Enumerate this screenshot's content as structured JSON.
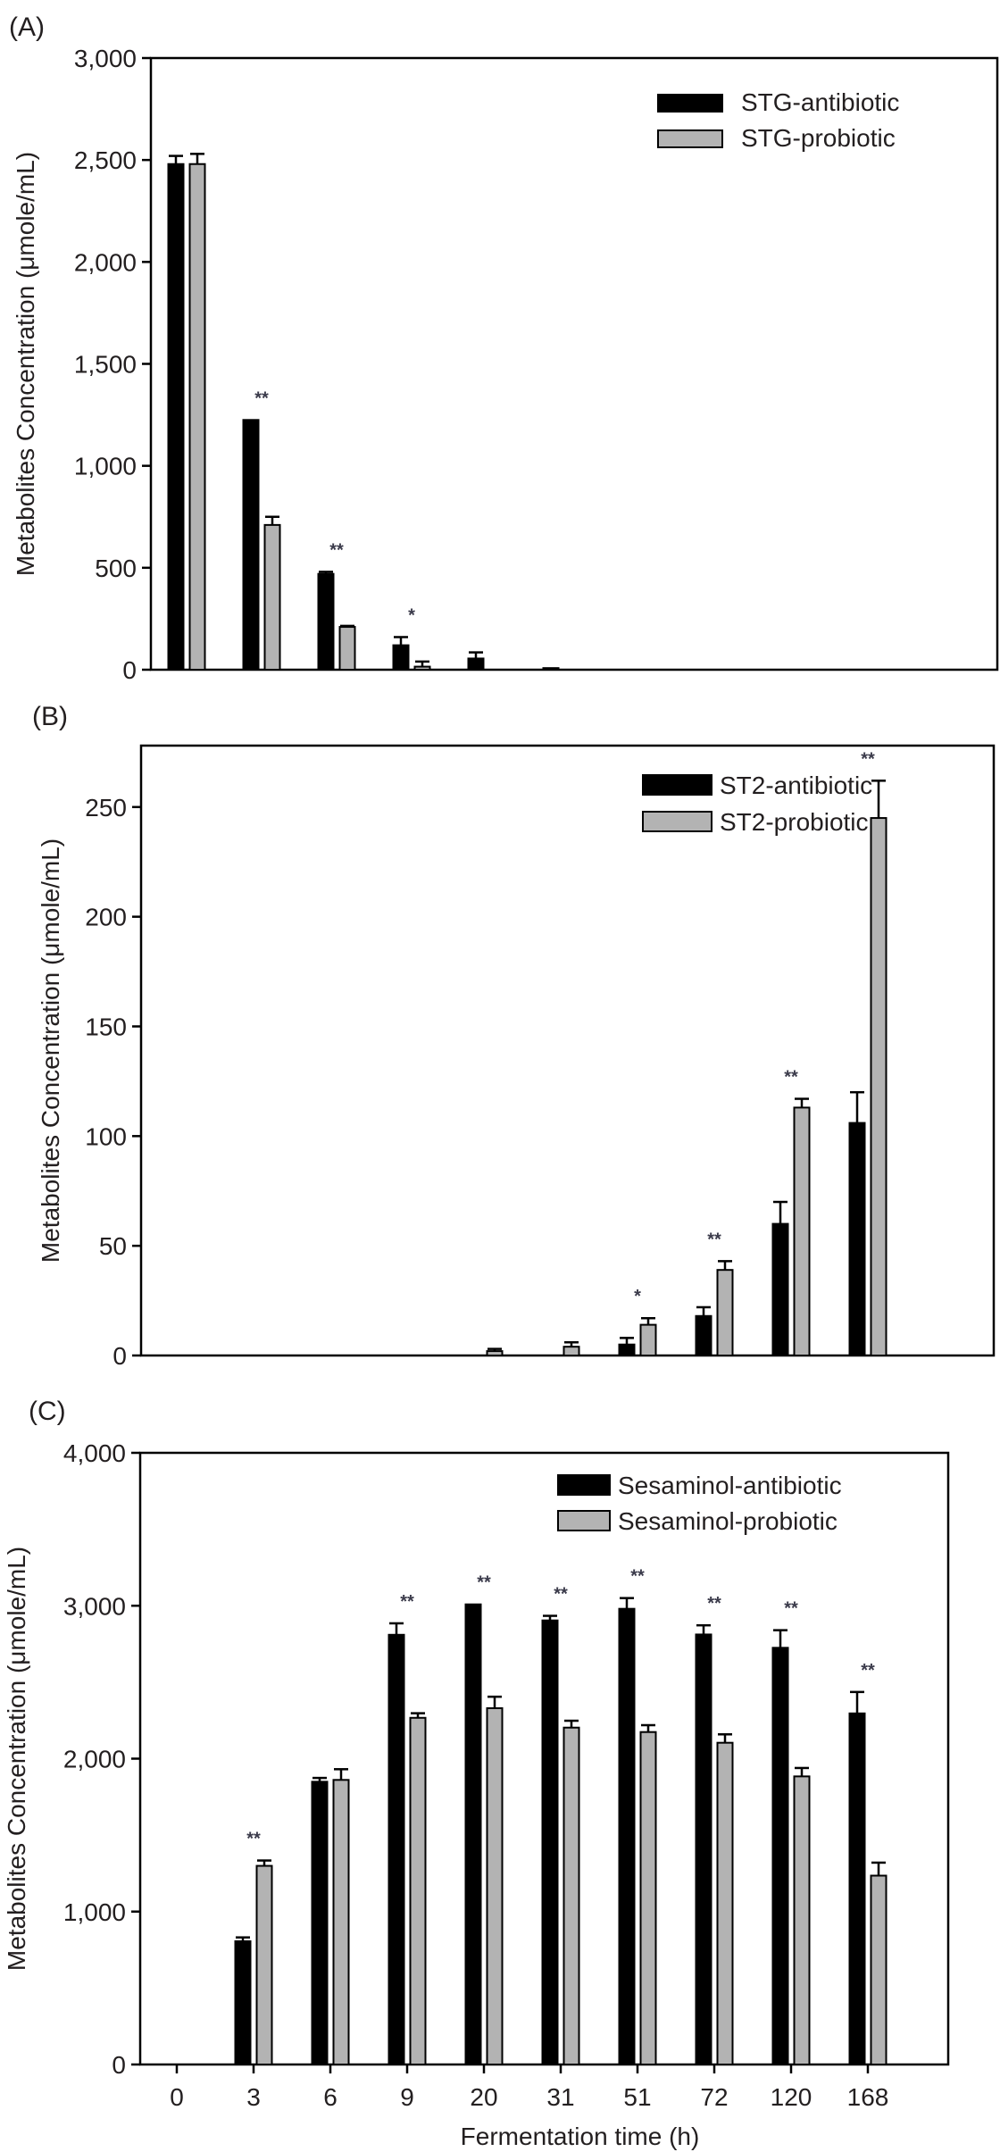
{
  "figure": {
    "x_axis_title": "Fermentation time (h)",
    "colors": {
      "antibiotic": "#000000",
      "probiotic": "#b3b3b3",
      "axis": "#000000"
    }
  },
  "chart_data": [
    {
      "type": "bar",
      "panel_label": "(A)",
      "title": "",
      "xlabel": "",
      "ylabel": "Metabolites Concentration (μmole/mL)",
      "ylim": [
        0,
        3000
      ],
      "yticks": [
        0,
        500,
        1000,
        1500,
        2000,
        2500,
        3000
      ],
      "ytick_labels": [
        "0",
        "500",
        "1,000",
        "1,500",
        "2,000",
        "2,500",
        "3,000"
      ],
      "show_xtick_labels": false,
      "categories": [
        "0",
        "3",
        "6",
        "9",
        "20",
        "31",
        "51",
        "72",
        "120",
        "168"
      ],
      "legend_position": "top-right",
      "grid": false,
      "series": [
        {
          "name": "STG-antibiotic",
          "color": "#000000",
          "values": [
            2480,
            1225,
            470,
            120,
            55,
            8,
            0,
            0,
            0,
            0
          ],
          "errors": [
            40,
            0,
            10,
            40,
            30,
            0,
            0,
            0,
            0,
            0
          ]
        },
        {
          "name": "STG-probiotic",
          "color": "#b3b3b3",
          "values": [
            2480,
            710,
            210,
            15,
            0,
            0,
            0,
            0,
            0,
            0
          ],
          "errors": [
            50,
            40,
            5,
            25,
            0,
            0,
            0,
            0,
            0,
            0
          ]
        }
      ],
      "significance": [
        "",
        "**",
        "**",
        "*",
        "",
        "",
        "",
        "",
        "",
        ""
      ]
    },
    {
      "type": "bar",
      "panel_label": "(B)",
      "title": "",
      "xlabel": "",
      "ylabel": "Metabolites Concentration (μmole/mL)",
      "ylim": [
        0,
        278
      ],
      "yticks": [
        0,
        50,
        100,
        150,
        200,
        250
      ],
      "ytick_labels": [
        "0",
        "50",
        "100",
        "150",
        "200",
        "250"
      ],
      "show_xtick_labels": false,
      "categories": [
        "0",
        "3",
        "6",
        "9",
        "20",
        "31",
        "51",
        "72",
        "120",
        "168"
      ],
      "legend_position": "top-right",
      "grid": false,
      "series": [
        {
          "name": "ST2-antibiotic",
          "color": "#000000",
          "values": [
            0,
            0,
            0,
            0,
            0,
            0,
            5,
            18,
            60,
            106
          ],
          "errors": [
            0,
            0,
            0,
            0,
            0,
            0,
            3,
            4,
            10,
            14
          ]
        },
        {
          "name": "ST2-probiotic",
          "color": "#b3b3b3",
          "values": [
            0,
            0,
            0,
            0,
            2,
            4,
            14,
            39,
            113,
            245
          ],
          "errors": [
            0,
            0,
            0,
            0,
            1,
            2,
            3,
            4,
            4,
            17
          ]
        }
      ],
      "significance": [
        "",
        "",
        "",
        "",
        "",
        "",
        "*",
        "**",
        "**",
        "**"
      ]
    },
    {
      "type": "bar",
      "panel_label": "(C)",
      "title": "",
      "xlabel": "Fermentation time (h)",
      "ylabel": "Metabolites Concentration (μmole/mL)",
      "ylim": [
        0,
        4000
      ],
      "yticks": [
        0,
        1000,
        2000,
        3000,
        4000
      ],
      "ytick_labels": [
        "0",
        "1,000",
        "2,000",
        "3,000",
        "4,000"
      ],
      "show_xtick_labels": true,
      "categories": [
        "0",
        "3",
        "6",
        "9",
        "20",
        "31",
        "51",
        "72",
        "120",
        "168"
      ],
      "legend_position": "top-right",
      "grid": false,
      "series": [
        {
          "name": "Sesaminol-antibiotic",
          "color": "#000000",
          "values": [
            0,
            806,
            1849,
            2810,
            3009,
            2904,
            2980,
            2812,
            2725,
            2296
          ],
          "errors": [
            0,
            25,
            25,
            75,
            0,
            30,
            70,
            60,
            115,
            140
          ]
        },
        {
          "name": "Sesaminol-probiotic",
          "color": "#b3b3b3",
          "values": [
            0,
            1299,
            1861,
            2267,
            2330,
            2203,
            2174,
            2104,
            1884,
            1235
          ],
          "errors": [
            0,
            35,
            70,
            30,
            75,
            45,
            45,
            55,
            55,
            85
          ]
        }
      ],
      "significance": [
        "",
        "**",
        "",
        "**",
        "**",
        "**",
        "**",
        "**",
        "**",
        "**"
      ]
    }
  ]
}
